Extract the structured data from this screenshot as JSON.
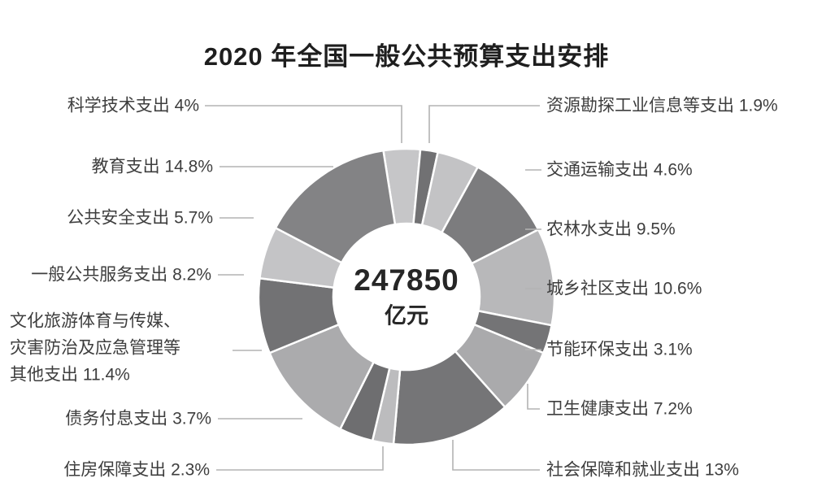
{
  "chart_data": {
    "type": "pie",
    "subtype": "donut",
    "title": "2020 年全国一般公共预算支出安排",
    "total_label": {
      "value": "247850",
      "unit": "亿元"
    },
    "legend_position": "around",
    "start_angle_deg": -9,
    "leader_line_color": "#b3b3b3",
    "segments": [
      {
        "id": "science-tech",
        "label": "科学技术支出",
        "pct": 4,
        "display": "科学技术支出 4%",
        "color": "#c6c6c8"
      },
      {
        "id": "resource-exploration",
        "label": "资源勘探工业信息等支出",
        "pct": 1.9,
        "display": "资源勘探工业信息等支出 1.9%",
        "color": "#717173"
      },
      {
        "id": "transportation",
        "label": "交通运输支出",
        "pct": 4.6,
        "display": "交通运输支出 4.6%",
        "color": "#c3c3c5"
      },
      {
        "id": "agri-forestry-water",
        "label": "农林水支出",
        "pct": 9.5,
        "display": "农林水支出 9.5%",
        "color": "#7c7c7e"
      },
      {
        "id": "urban-rural-community",
        "label": "城乡社区支出",
        "pct": 10.6,
        "display": "城乡社区支出 10.6%",
        "color": "#b8b8ba"
      },
      {
        "id": "energy-conservation",
        "label": "节能环保支出",
        "pct": 3.1,
        "display": "节能环保支出 3.1%",
        "color": "#747476"
      },
      {
        "id": "health",
        "label": "卫生健康支出",
        "pct": 7.2,
        "display": "卫生健康支出 7.2%",
        "color": "#aaaaac"
      },
      {
        "id": "social-security-employment",
        "label": "社会保障和就业支出",
        "pct": 13,
        "display": "社会保障和就业支出 13%",
        "color": "#757577"
      },
      {
        "id": "housing",
        "label": "住房保障支出",
        "pct": 2.3,
        "display": "住房保障支出 2.3%",
        "color": "#bcbcbe"
      },
      {
        "id": "debt-interest",
        "label": "债务付息支出",
        "pct": 3.7,
        "display": "债务付息支出 3.7%",
        "color": "#6e6e70"
      },
      {
        "id": "culture-tourism-other",
        "label": "文化旅游体育与传媒、灾害防治及应急管理等其他支出",
        "pct": 11.4,
        "display": "文化旅游体育与传媒、\n灾害防治及应急管理等\n其他支出 11.4%",
        "color": "#ababad"
      },
      {
        "id": "general-public-service",
        "label": "一般公共服务支出",
        "pct": 8.2,
        "display": "一般公共服务支出 8.2%",
        "color": "#727274"
      },
      {
        "id": "public-safety",
        "label": "公共安全支出",
        "pct": 5.7,
        "display": "公共安全支出 5.7%",
        "color": "#c4c4c6"
      },
      {
        "id": "education",
        "label": "教育支出",
        "pct": 14.8,
        "display": "教育支出 14.8%",
        "color": "#838385"
      }
    ]
  }
}
